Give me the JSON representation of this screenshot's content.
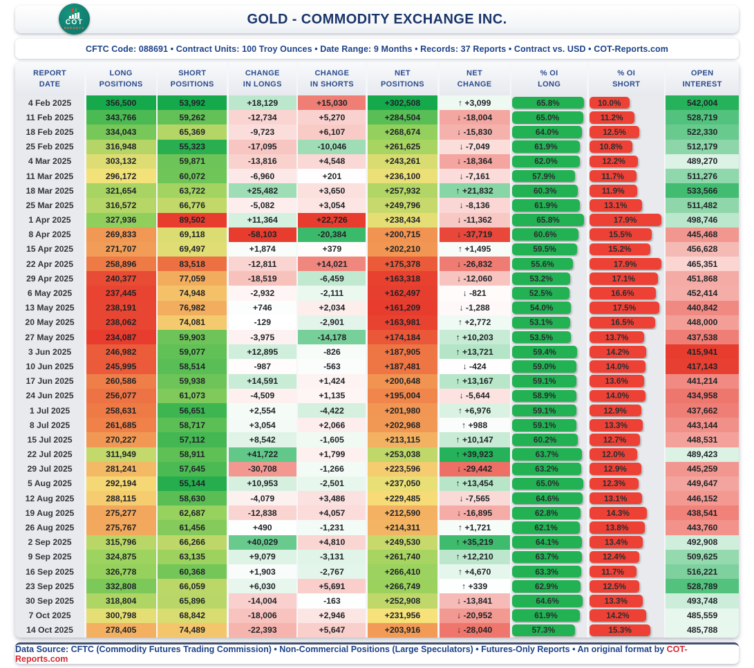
{
  "header": {
    "title": "GOLD - COMMODITY EXCHANGE INC.",
    "logo": {
      "top_text": "COT",
      "bottom_text": "REPORTS"
    }
  },
  "meta_bar": {
    "text": "CFTC Code: 088691 • Contract Units: 100 Troy Ounces • Date Range: 9 Months • Records: 37 Reports • Contract vs. USD • COT-Reports.com"
  },
  "chart_data": {
    "type": "table",
    "title": "GOLD - COMMODITY EXCHANGE INC.",
    "columns": [
      {
        "id": "date",
        "label": [
          "REPORT",
          "DATE"
        ]
      },
      {
        "id": "long",
        "label": [
          "LONG",
          "POSITIONS"
        ]
      },
      {
        "id": "short",
        "label": [
          "SHORT",
          "POSITIONS"
        ]
      },
      {
        "id": "chg_long",
        "label": [
          "CHANGE",
          "IN LONGS"
        ]
      },
      {
        "id": "chg_short",
        "label": [
          "CHANGE",
          "IN SHORTS"
        ]
      },
      {
        "id": "net",
        "label": [
          "NET",
          "POSITIONS"
        ]
      },
      {
        "id": "net_chg",
        "label": [
          "NET",
          "CHANGE"
        ]
      },
      {
        "id": "oi_long",
        "label": [
          "% OI",
          "LONG"
        ]
      },
      {
        "id": "oi_short",
        "label": [
          "% OI",
          "SHORT"
        ]
      },
      {
        "id": "oi",
        "label": [
          "OPEN",
          "INTEREST"
        ]
      }
    ],
    "rows": [
      [
        "4 Feb 2025",
        "356,500",
        "53,992",
        "+18,129",
        "+15,030",
        "+302,508",
        "↑ +3,099",
        "65.8%",
        "10.0%",
        "542,004"
      ],
      [
        "11 Feb 2025",
        "343,766",
        "59,262",
        "-12,734",
        "+5,270",
        "+284,504",
        "↓ -18,004",
        "65.0%",
        "11.2%",
        "528,719"
      ],
      [
        "18 Feb 2025",
        "334,043",
        "65,369",
        "-9,723",
        "+6,107",
        "+268,674",
        "↓ -15,830",
        "64.0%",
        "12.5%",
        "522,330"
      ],
      [
        "25 Feb 2025",
        "316,948",
        "55,323",
        "-17,095",
        "-10,046",
        "+261,625",
        "↓ -7,049",
        "61.9%",
        "10.8%",
        "512,179"
      ],
      [
        "4 Mar 2025",
        "303,132",
        "59,871",
        "-13,816",
        "+4,548",
        "+243,261",
        "↓ -18,364",
        "62.0%",
        "12.2%",
        "489,270"
      ],
      [
        "11 Mar 2025",
        "296,172",
        "60,072",
        "-6,960",
        "+201",
        "+236,100",
        "↓ -7,161",
        "57.9%",
        "11.7%",
        "511,276"
      ],
      [
        "18 Mar 2025",
        "321,654",
        "63,722",
        "+25,482",
        "+3,650",
        "+257,932",
        "↑ +21,832",
        "60.3%",
        "11.9%",
        "533,566"
      ],
      [
        "25 Mar 2025",
        "316,572",
        "66,776",
        "-5,082",
        "+3,054",
        "+249,796",
        "↓ -8,136",
        "61.9%",
        "13.1%",
        "511,482"
      ],
      [
        "1 Apr 2025",
        "327,936",
        "89,502",
        "+11,364",
        "+22,726",
        "+238,434",
        "↓ -11,362",
        "65.8%",
        "17.9%",
        "498,746"
      ],
      [
        "8 Apr 2025",
        "269,833",
        "69,118",
        "-58,103",
        "-20,384",
        "+200,715",
        "↓ -37,719",
        "60.6%",
        "15.5%",
        "445,468"
      ],
      [
        "15 Apr 2025",
        "271,707",
        "69,497",
        "+1,874",
        "+379",
        "+202,210",
        "↑ +1,495",
        "59.5%",
        "15.2%",
        "456,628"
      ],
      [
        "22 Apr 2025",
        "258,896",
        "83,518",
        "-12,811",
        "+14,021",
        "+175,378",
        "↓ -26,832",
        "55.6%",
        "17.9%",
        "465,351"
      ],
      [
        "29 Apr 2025",
        "240,377",
        "77,059",
        "-18,519",
        "-6,459",
        "+163,318",
        "↓ -12,060",
        "53.2%",
        "17.1%",
        "451,868"
      ],
      [
        "6 May 2025",
        "237,445",
        "74,948",
        "-2,932",
        "-2,111",
        "+162,497",
        "↓ -821",
        "52.5%",
        "16.6%",
        "452,414"
      ],
      [
        "13 May 2025",
        "238,191",
        "76,982",
        "+746",
        "+2,034",
        "+161,209",
        "↓ -1,288",
        "54.0%",
        "17.5%",
        "440,842"
      ],
      [
        "20 May 2025",
        "238,062",
        "74,081",
        "-129",
        "-2,901",
        "+163,981",
        "↑ +2,772",
        "53.1%",
        "16.5%",
        "448,000"
      ],
      [
        "27 May 2025",
        "234,087",
        "59,903",
        "-3,975",
        "-14,178",
        "+174,184",
        "↑ +10,203",
        "53.5%",
        "13.7%",
        "437,538"
      ],
      [
        "3 Jun 2025",
        "246,982",
        "59,077",
        "+12,895",
        "-826",
        "+187,905",
        "↑ +13,721",
        "59.4%",
        "14.2%",
        "415,941"
      ],
      [
        "10 Jun 2025",
        "245,995",
        "58,514",
        "-987",
        "-563",
        "+187,481",
        "↓ -424",
        "59.0%",
        "14.0%",
        "417,143"
      ],
      [
        "17 Jun 2025",
        "260,586",
        "59,938",
        "+14,591",
        "+1,424",
        "+200,648",
        "↑ +13,167",
        "59.1%",
        "13.6%",
        "441,214"
      ],
      [
        "24 Jun 2025",
        "256,077",
        "61,073",
        "-4,509",
        "+1,135",
        "+195,004",
        "↓ -5,644",
        "58.9%",
        "14.0%",
        "434,958"
      ],
      [
        "1 Jul 2025",
        "258,631",
        "56,651",
        "+2,554",
        "-4,422",
        "+201,980",
        "↑ +6,976",
        "59.1%",
        "12.9%",
        "437,662"
      ],
      [
        "8 Jul 2025",
        "261,685",
        "58,717",
        "+3,054",
        "+2,066",
        "+202,968",
        "↑ +988",
        "59.1%",
        "13.3%",
        "443,144"
      ],
      [
        "15 Jul 2025",
        "270,227",
        "57,112",
        "+8,542",
        "-1,605",
        "+213,115",
        "↑ +10,147",
        "60.2%",
        "12.7%",
        "448,531"
      ],
      [
        "22 Jul 2025",
        "311,949",
        "58,911",
        "+41,722",
        "+1,799",
        "+253,038",
        "↑ +39,923",
        "63.7%",
        "12.0%",
        "489,423"
      ],
      [
        "29 Jul 2025",
        "281,241",
        "57,645",
        "-30,708",
        "-1,266",
        "+223,596",
        "↓ -29,442",
        "63.2%",
        "12.9%",
        "445,259"
      ],
      [
        "5 Aug 2025",
        "292,194",
        "55,144",
        "+10,953",
        "-2,501",
        "+237,050",
        "↑ +13,454",
        "65.0%",
        "12.3%",
        "449,647"
      ],
      [
        "12 Aug 2025",
        "288,115",
        "58,630",
        "-4,079",
        "+3,486",
        "+229,485",
        "↓ -7,565",
        "64.6%",
        "13.1%",
        "446,152"
      ],
      [
        "19 Aug 2025",
        "275,277",
        "62,687",
        "-12,838",
        "+4,057",
        "+212,590",
        "↓ -16,895",
        "62.8%",
        "14.3%",
        "438,541"
      ],
      [
        "26 Aug 2025",
        "275,767",
        "61,456",
        "+490",
        "-1,231",
        "+214,311",
        "↑ +1,721",
        "62.1%",
        "13.8%",
        "443,760"
      ],
      [
        "2 Sep 2025",
        "315,796",
        "66,266",
        "+40,029",
        "+4,810",
        "+249,530",
        "↑ +35,219",
        "64.1%",
        "13.4%",
        "492,908"
      ],
      [
        "9 Sep 2025",
        "324,875",
        "63,135",
        "+9,079",
        "-3,131",
        "+261,740",
        "↑ +12,210",
        "63.7%",
        "12.4%",
        "509,625"
      ],
      [
        "16 Sep 2025",
        "326,778",
        "60,368",
        "+1,903",
        "-2,767",
        "+266,410",
        "↑ +4,670",
        "63.3%",
        "11.7%",
        "516,221"
      ],
      [
        "23 Sep 2025",
        "332,808",
        "66,059",
        "+6,030",
        "+5,691",
        "+266,749",
        "↑ +339",
        "62.9%",
        "12.5%",
        "528,789"
      ],
      [
        "30 Sep 2025",
        "318,804",
        "65,896",
        "-14,004",
        "-163",
        "+252,908",
        "↓ -13,841",
        "64.6%",
        "13.3%",
        "493,748"
      ],
      [
        "7 Oct 2025",
        "300,798",
        "68,842",
        "-18,006",
        "+2,946",
        "+231,956",
        "↓ -20,952",
        "61.9%",
        "14.2%",
        "485,559"
      ],
      [
        "14 Oct 2025",
        "278,405",
        "74,489",
        "-22,393",
        "+5,647",
        "+203,916",
        "↓ -28,040",
        "57.3%",
        "15.3%",
        "485,788"
      ]
    ],
    "heatmap_colors": {
      "rdylgn": [
        "#e73c2e",
        "#f0894c",
        "#f6e17a",
        "#9ad25e",
        "#15a94c"
      ],
      "negative": "#e73c2e",
      "positive": "#25b25b",
      "neutral": "#ffffff",
      "bar_green": "#22b253",
      "bar_red": "#ee4136",
      "bar_track": "#e8eaed"
    },
    "legend_note": "heatmap table: greens favorable / reds unfavorable, % OI shown as proportional bars"
  },
  "footer": {
    "prefix": "Data Source: ",
    "source_bold": "CFTC",
    "middle": " (Commodity Futures Trading Commission) • Non-Commercial Positions (Large Speculators) • Futures-Only Reports • An original format by ",
    "brand": "COT-Reports.com"
  }
}
